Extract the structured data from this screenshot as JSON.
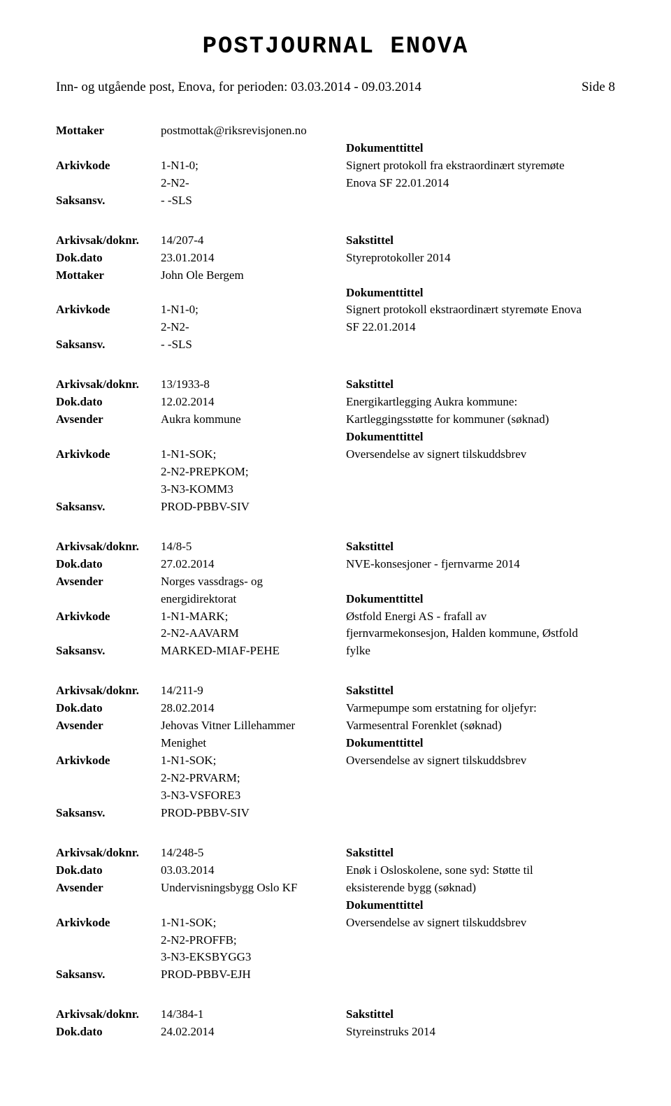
{
  "header": {
    "main_title": "POSTJOURNAL ENOVA",
    "period_line": "Inn- og utgående post, Enova, for perioden: 03.03.2014 - 09.03.2014",
    "side_label": "Side 8"
  },
  "labels": {
    "mottaker": "Mottaker",
    "avsender": "Avsender",
    "arkivkode": "Arkivkode",
    "saksansv": "Saksansv.",
    "arkivsak": "Arkivsak/doknr.",
    "dokdato": "Dok.dato",
    "doktittel": "Dokumenttittel",
    "sakstittel": "Sakstittel"
  },
  "records": [
    {
      "rows": [
        {
          "label": "mottaker",
          "c2": "postmottak@riksrevisjonen.no",
          "c3": ""
        },
        {
          "label": "",
          "c2": "",
          "c3": "Dokumenttittel",
          "c3bold": true
        },
        {
          "label": "arkivkode",
          "c2": "1-N1-0;",
          "c3": "Signert protokoll fra ekstraordinært styremøte"
        },
        {
          "label": "",
          "c2": "2-N2-",
          "c3": "Enova SF 22.01.2014"
        },
        {
          "label": "saksansv",
          "c2": "- -SLS",
          "c3": ""
        }
      ]
    },
    {
      "rows": [
        {
          "label": "arkivsak",
          "c2": "14/207-4",
          "c3": "Sakstittel",
          "c3bold": true
        },
        {
          "label": "dokdato",
          "c2": "23.01.2014",
          "c3": "Styreprotokoller 2014"
        },
        {
          "label": "mottaker",
          "c2": "John Ole Bergem",
          "c3": ""
        },
        {
          "label": "",
          "c2": "",
          "c3": "Dokumenttittel",
          "c3bold": true
        },
        {
          "label": "arkivkode",
          "c2": "1-N1-0;",
          "c3": "Signert protokoll ekstraordinært styremøte Enova"
        },
        {
          "label": "",
          "c2": "2-N2-",
          "c3": "SF 22.01.2014"
        },
        {
          "label": "saksansv",
          "c2": "- -SLS",
          "c3": ""
        }
      ]
    },
    {
      "rows": [
        {
          "label": "arkivsak",
          "c2": "13/1933-8",
          "c3": "Sakstittel",
          "c3bold": true
        },
        {
          "label": "dokdato",
          "c2": "12.02.2014",
          "c3": "Energikartlegging Aukra kommune:"
        },
        {
          "label": "avsender",
          "c2": "Aukra kommune",
          "c3": "Kartleggingsstøtte for kommuner (søknad)"
        },
        {
          "label": "",
          "c2": "",
          "c3": "Dokumenttittel",
          "c3bold": true
        },
        {
          "label": "arkivkode",
          "c2": "1-N1-SOK;",
          "c3": "Oversendelse av signert tilskuddsbrev"
        },
        {
          "label": "",
          "c2": "2-N2-PREPKOM;",
          "c3": ""
        },
        {
          "label": "",
          "c2": "3-N3-KOMM3",
          "c3": ""
        },
        {
          "label": "saksansv",
          "c2": "PROD-PBBV-SIV",
          "c3": ""
        }
      ]
    },
    {
      "rows": [
        {
          "label": "arkivsak",
          "c2": "14/8-5",
          "c3": "Sakstittel",
          "c3bold": true
        },
        {
          "label": "dokdato",
          "c2": "27.02.2014",
          "c3": "NVE-konsesjoner - fjernvarme 2014"
        },
        {
          "label": "avsender",
          "c2": "Norges vassdrags- og",
          "c3": ""
        },
        {
          "label": "",
          "c2": "energidirektorat",
          "c3": "Dokumenttittel",
          "c3bold": true
        },
        {
          "label": "arkivkode",
          "c2": "1-N1-MARK;",
          "c3": "Østfold Energi AS - frafall av"
        },
        {
          "label": "",
          "c2": "2-N2-AAVARM",
          "c3": "fjernvarmekonsesjon, Halden kommune, Østfold"
        },
        {
          "label": "saksansv",
          "c2": "MARKED-MIAF-PEHE",
          "c3": "fylke"
        }
      ]
    },
    {
      "rows": [
        {
          "label": "arkivsak",
          "c2": "14/211-9",
          "c3": "Sakstittel",
          "c3bold": true
        },
        {
          "label": "dokdato",
          "c2": "28.02.2014",
          "c3": "Varmepumpe som erstatning for oljefyr:"
        },
        {
          "label": "avsender",
          "c2": "Jehovas Vitner Lillehammer",
          "c3": "Varmesentral Forenklet (søknad)"
        },
        {
          "label": "",
          "c2": "Menighet",
          "c3": "Dokumenttittel",
          "c3bold": true
        },
        {
          "label": "arkivkode",
          "c2": "1-N1-SOK;",
          "c3": "Oversendelse av signert tilskuddsbrev"
        },
        {
          "label": "",
          "c2": "2-N2-PRVARM;",
          "c3": ""
        },
        {
          "label": "",
          "c2": "3-N3-VSFORE3",
          "c3": ""
        },
        {
          "label": "saksansv",
          "c2": "PROD-PBBV-SIV",
          "c3": ""
        }
      ]
    },
    {
      "rows": [
        {
          "label": "arkivsak",
          "c2": "14/248-5",
          "c3": "Sakstittel",
          "c3bold": true
        },
        {
          "label": "dokdato",
          "c2": "03.03.2014",
          "c3": "Enøk i Osloskolene, sone syd: Støtte til"
        },
        {
          "label": "avsender",
          "c2": "Undervisningsbygg Oslo KF",
          "c3": "eksisterende bygg (søknad)"
        },
        {
          "label": "",
          "c2": "",
          "c3": "Dokumenttittel",
          "c3bold": true
        },
        {
          "label": "arkivkode",
          "c2": "1-N1-SOK;",
          "c3": "Oversendelse av signert tilskuddsbrev"
        },
        {
          "label": "",
          "c2": "2-N2-PROFFB;",
          "c3": ""
        },
        {
          "label": "",
          "c2": "3-N3-EKSBYGG3",
          "c3": ""
        },
        {
          "label": "saksansv",
          "c2": "PROD-PBBV-EJH",
          "c3": ""
        }
      ]
    },
    {
      "rows": [
        {
          "label": "arkivsak",
          "c2": "14/384-1",
          "c3": "Sakstittel",
          "c3bold": true
        },
        {
          "label": "dokdato",
          "c2": "24.02.2014",
          "c3": "Styreinstruks 2014"
        }
      ]
    }
  ]
}
